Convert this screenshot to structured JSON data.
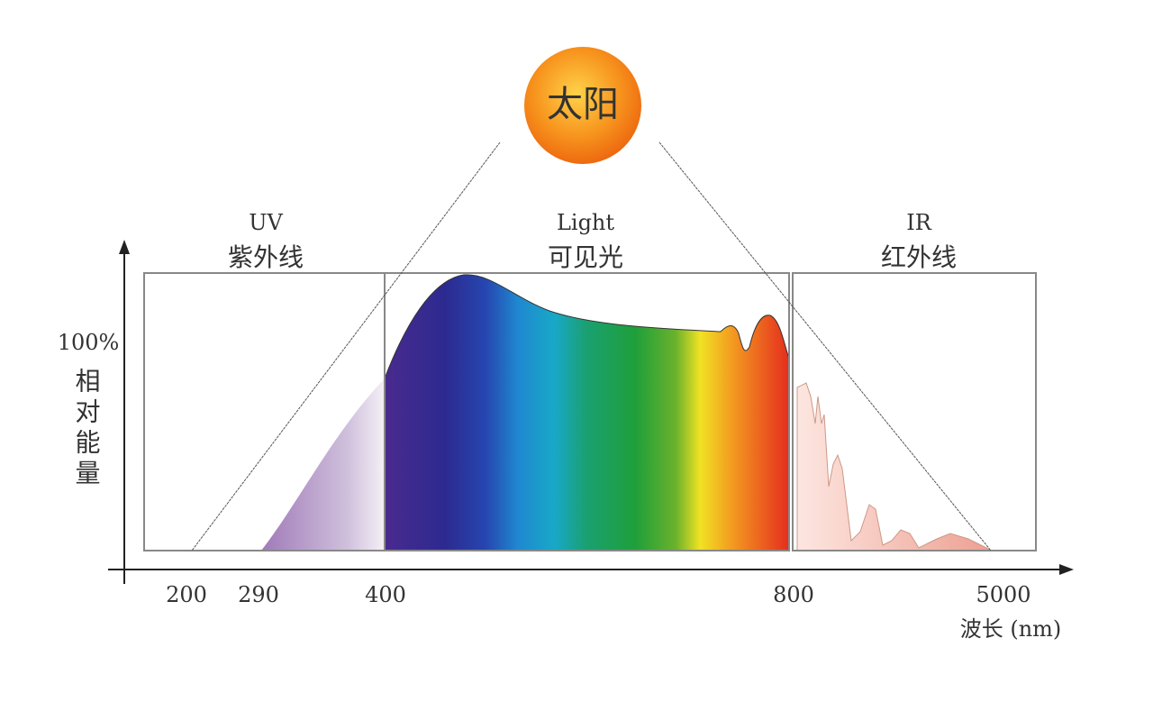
{
  "sun": {
    "label": "太阳"
  },
  "regions": [
    {
      "name": "UV",
      "label": "紫外线"
    },
    {
      "name": "Light",
      "label": "可见光"
    },
    {
      "name": "IR",
      "label": "红外线"
    }
  ],
  "y_axis": {
    "top_label": "100%",
    "label": "相对能量"
  },
  "x_axis": {
    "labels": [
      "200",
      "290",
      "400",
      "800",
      "5000"
    ],
    "title": "波长 (nm)"
  }
}
